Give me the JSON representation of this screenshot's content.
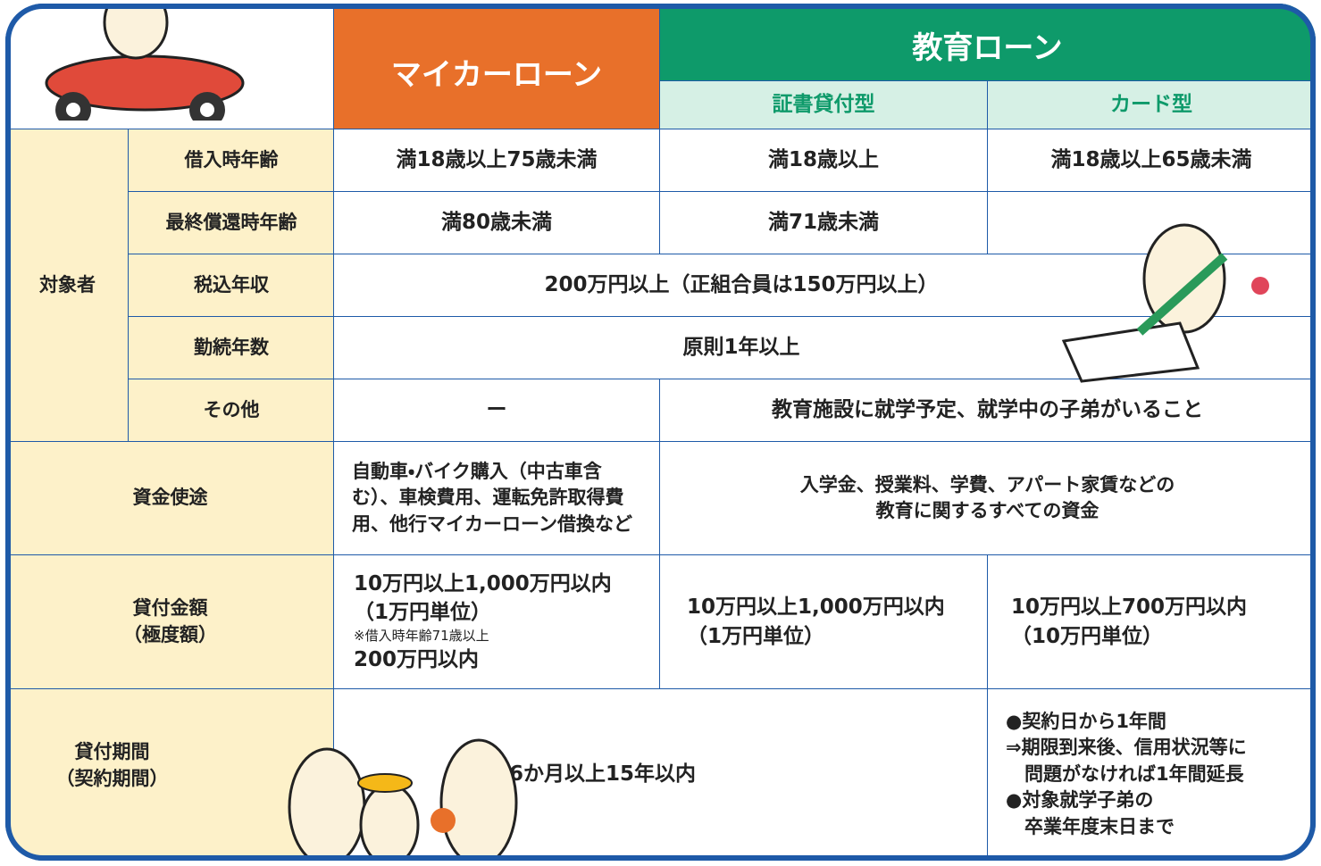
{
  "header": {
    "my_car_loan": "マイカーローン",
    "education_loan": "教育ローン",
    "certificate_type": "証書貸付型",
    "card_type": "カード型"
  },
  "eligibility": {
    "label": "対象者",
    "rows": [
      {
        "label": "借入時年齢",
        "my_car": "満18歳以上75歳未満",
        "certificate": "満18歳以上",
        "card": "満18歳以上65歳未満"
      },
      {
        "label": "最終償還時年齢",
        "my_car": "満80歳未満",
        "certificate": "満71歳未満"
      },
      {
        "label": "税込年収",
        "all": "200万円以上（正組合員は150万円以上）"
      },
      {
        "label": "勤続年数",
        "all": "原則1年以上"
      },
      {
        "label": "その他",
        "my_car": "ー",
        "education": "教育施設に就学予定、就学中の子弟がいること"
      }
    ]
  },
  "use_of_funds": {
    "label": "資金使途",
    "my_car": [
      "自動車・バイク購入（中古車含",
      "む）、車検費用、運転免許取得費",
      "用、他行マイカーローン借換など"
    ],
    "education": [
      "入学金、授業料、学費、アパート家賃などの",
      "教育に関するすべての資金"
    ]
  },
  "loan_amount": {
    "label": [
      "貸付金額",
      "（極度額）"
    ],
    "my_car": [
      "10万円以上1,000万円以内",
      "（1万円単位）",
      "※借入時年齢71歳以上",
      "200万円以内"
    ],
    "certificate": [
      "10万円以上1,000万円以内",
      "（1万円単位）"
    ],
    "card": [
      "10万円以上700万円以内",
      "（10万円単位）"
    ]
  },
  "loan_period": {
    "label": [
      "貸付期間",
      "（契約期間）"
    ],
    "loans": "6か月以上15年以内",
    "card": [
      "●契約日から1年間",
      "⇒期限到来後、信用状況等に",
      "　問題がなければ1年間延長",
      "●対象就学子弟の",
      "　卒業年度末日まで"
    ]
  }
}
